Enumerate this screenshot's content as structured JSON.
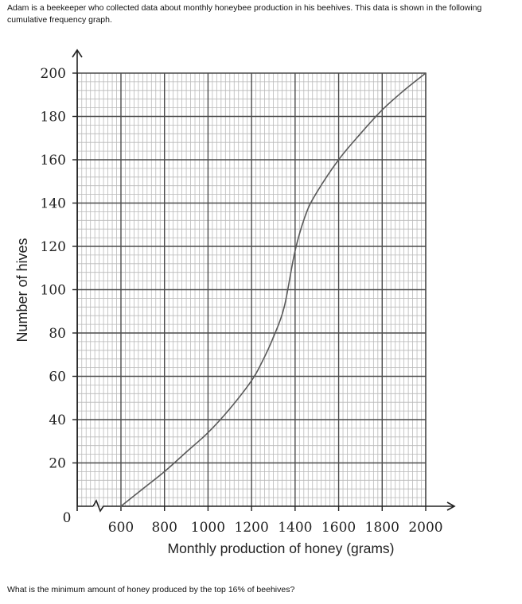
{
  "intro_text": "Adam is a beekeeper who collected data about monthly honeybee production in his beehives. This data is shown in the following cumulative frequency graph.",
  "question_text": "What is the minimum amount of honey produced by the top 16% of beehives?",
  "chart_data": {
    "type": "line",
    "title": "",
    "xlabel": "Monthly production of honey (grams)",
    "ylabel": "Number of hives",
    "xlim": [
      600,
      2000
    ],
    "ylim": [
      0,
      200
    ],
    "x_ticks": [
      600,
      800,
      1000,
      1200,
      1400,
      1600,
      1800,
      2000
    ],
    "y_ticks": [
      20,
      40,
      60,
      80,
      100,
      120,
      140,
      160,
      180,
      200
    ],
    "origin_label": "0",
    "axis_break": "x",
    "grid": true,
    "series": [
      {
        "color": "#5a5a5a",
        "x": [
          600,
          700,
          800,
          900,
          1000,
          1100,
          1200,
          1250,
          1300,
          1350,
          1400,
          1450,
          1500,
          1600,
          1700,
          1800,
          1900,
          2000
        ],
        "y": [
          0,
          8,
          16,
          25,
          34,
          45,
          58,
          67,
          78,
          92,
          118,
          135,
          145,
          160,
          172,
          183,
          192,
          200
        ]
      }
    ]
  }
}
